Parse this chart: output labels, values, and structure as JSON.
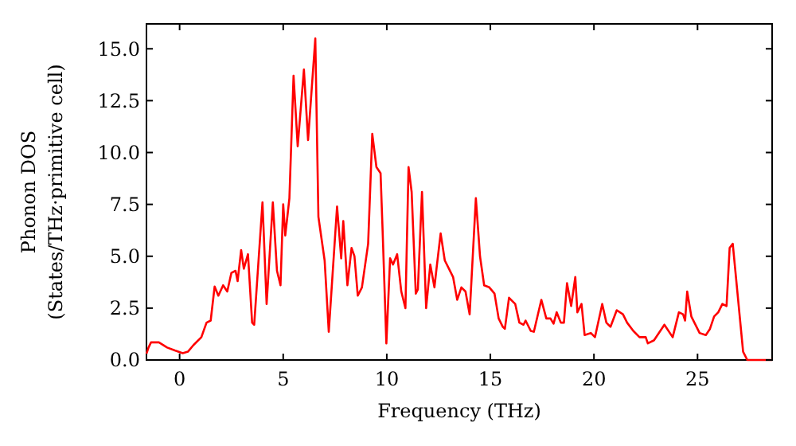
{
  "chart_data": {
    "type": "line",
    "xlabel": "Frequency (THz)",
    "ylabel": "Phonon DOS\n(States/THz·primitive cell)",
    "xlim": [
      -1.6,
      28.6
    ],
    "ylim": [
      0,
      16.2
    ],
    "xticks": [
      0,
      5,
      10,
      15,
      20,
      25
    ],
    "yticks": [
      {
        "value": 0,
        "label": "0.0"
      },
      {
        "value": 2.5,
        "label": "2.5"
      },
      {
        "value": 5,
        "label": "5.0"
      },
      {
        "value": 7.5,
        "label": "7.5"
      },
      {
        "value": 10,
        "label": "10.0"
      },
      {
        "value": 12.5,
        "label": "12.5"
      },
      {
        "value": 15,
        "label": "15.0"
      }
    ],
    "series": [
      {
        "color": "#ff0000",
        "x": [
          -1.6,
          -1.5,
          -1.38,
          -1.0,
          -0.6,
          -0.23,
          0.15,
          0.4,
          0.67,
          1.05,
          1.3,
          1.5,
          1.69,
          1.87,
          2.1,
          2.3,
          2.5,
          2.7,
          2.8,
          2.97,
          3.1,
          3.3,
          3.5,
          3.6,
          4.0,
          4.2,
          4.5,
          4.7,
          4.87,
          5.0,
          5.1,
          5.3,
          5.5,
          5.7,
          6.0,
          6.2,
          6.55,
          6.7,
          7.0,
          7.2,
          7.6,
          7.8,
          7.9,
          8.1,
          8.3,
          8.44,
          8.6,
          8.8,
          9.1,
          9.3,
          9.5,
          9.7,
          9.8,
          9.98,
          10.16,
          10.3,
          10.5,
          10.7,
          10.9,
          11.05,
          11.2,
          11.4,
          11.5,
          11.7,
          11.9,
          12.1,
          12.3,
          12.4,
          12.6,
          12.8,
          13.0,
          13.2,
          13.4,
          13.6,
          13.8,
          14.0,
          14.3,
          14.5,
          14.7,
          14.95,
          15.2,
          15.4,
          15.6,
          15.7,
          15.9,
          16.1,
          16.2,
          16.4,
          16.6,
          16.7,
          16.95,
          17.1,
          17.46,
          17.7,
          17.9,
          18.05,
          18.2,
          18.4,
          18.55,
          18.7,
          18.9,
          19.1,
          19.2,
          19.4,
          19.55,
          19.85,
          20.05,
          20.4,
          20.6,
          20.8,
          21.1,
          21.4,
          21.6,
          21.9,
          22.2,
          22.5,
          22.6,
          22.9,
          23.4,
          23.8,
          24.1,
          24.3,
          24.4,
          24.5,
          24.7,
          25.1,
          25.4,
          25.6,
          25.8,
          26.0,
          26.2,
          26.4,
          26.55,
          26.7,
          27.2,
          27.4,
          28.6
        ],
        "values": [
          0.3,
          0.6,
          0.85,
          0.85,
          0.6,
          0.46,
          0.33,
          0.4,
          0.72,
          1.1,
          1.8,
          1.9,
          3.54,
          3.1,
          3.6,
          3.3,
          4.2,
          4.3,
          3.8,
          5.3,
          4.4,
          5.1,
          1.8,
          1.7,
          7.6,
          2.7,
          7.6,
          4.3,
          3.6,
          7.5,
          6.0,
          7.8,
          13.7,
          10.3,
          14.0,
          10.6,
          15.5,
          6.9,
          4.8,
          1.36,
          7.4,
          4.9,
          6.7,
          3.6,
          5.4,
          5.0,
          3.1,
          3.5,
          5.6,
          10.9,
          9.3,
          9.0,
          6.2,
          0.8,
          4.9,
          4.6,
          5.1,
          3.3,
          2.5,
          9.3,
          8.1,
          3.2,
          3.4,
          8.1,
          2.5,
          4.6,
          3.5,
          4.4,
          6.1,
          4.8,
          4.4,
          4.0,
          2.9,
          3.5,
          3.3,
          2.2,
          7.8,
          5.0,
          3.6,
          3.5,
          3.2,
          2.0,
          1.6,
          1.5,
          3.0,
          2.8,
          2.7,
          1.8,
          1.7,
          1.9,
          1.4,
          1.36,
          2.9,
          2.0,
          2.0,
          1.75,
          2.3,
          1.8,
          1.8,
          3.7,
          2.6,
          4.0,
          2.3,
          2.7,
          1.2,
          1.3,
          1.1,
          2.7,
          1.8,
          1.6,
          2.4,
          2.2,
          1.8,
          1.4,
          1.1,
          1.1,
          0.8,
          0.95,
          1.7,
          1.1,
          2.3,
          2.2,
          1.9,
          3.3,
          2.1,
          1.3,
          1.2,
          1.5,
          2.1,
          2.3,
          2.7,
          2.6,
          5.4,
          5.6,
          0.4,
          0.0,
          0.0
        ]
      }
    ]
  }
}
